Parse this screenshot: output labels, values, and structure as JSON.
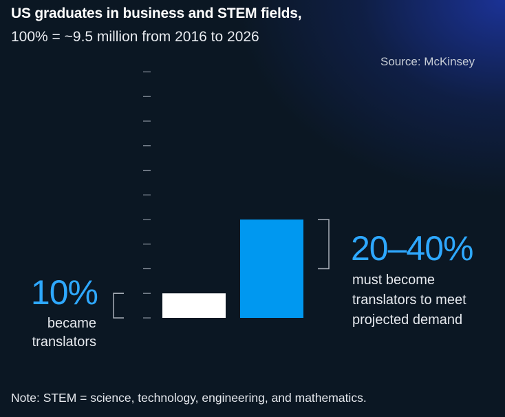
{
  "header": {
    "title": "US graduates in business and STEM fields,",
    "subtitle": "100% = ~9.5 million from 2016 to 2026",
    "source": "Source: McKinsey"
  },
  "callouts": {
    "left_value": "10%",
    "left_text": "became translators",
    "right_value": "20–40%",
    "right_text": "must become translators to meet projected demand"
  },
  "footer": {
    "note": "Note: STEM = science, technology, engineering, and mathematics."
  },
  "colors": {
    "bar_actual": "#ffffff",
    "bar_needed": "#0098f0",
    "accent_text": "#2ea8ff",
    "ticks": "#8a939e",
    "bracket": "#a7aeb7"
  },
  "chart_data": {
    "type": "bar",
    "categories": [
      "became translators",
      "must become translators"
    ],
    "values": [
      10,
      40
    ],
    "ranges": [
      [
        0,
        10
      ],
      [
        20,
        40
      ]
    ],
    "unit": "%",
    "ylim": [
      0,
      100
    ],
    "tick_step": 10,
    "grid": false,
    "legend": "none"
  }
}
